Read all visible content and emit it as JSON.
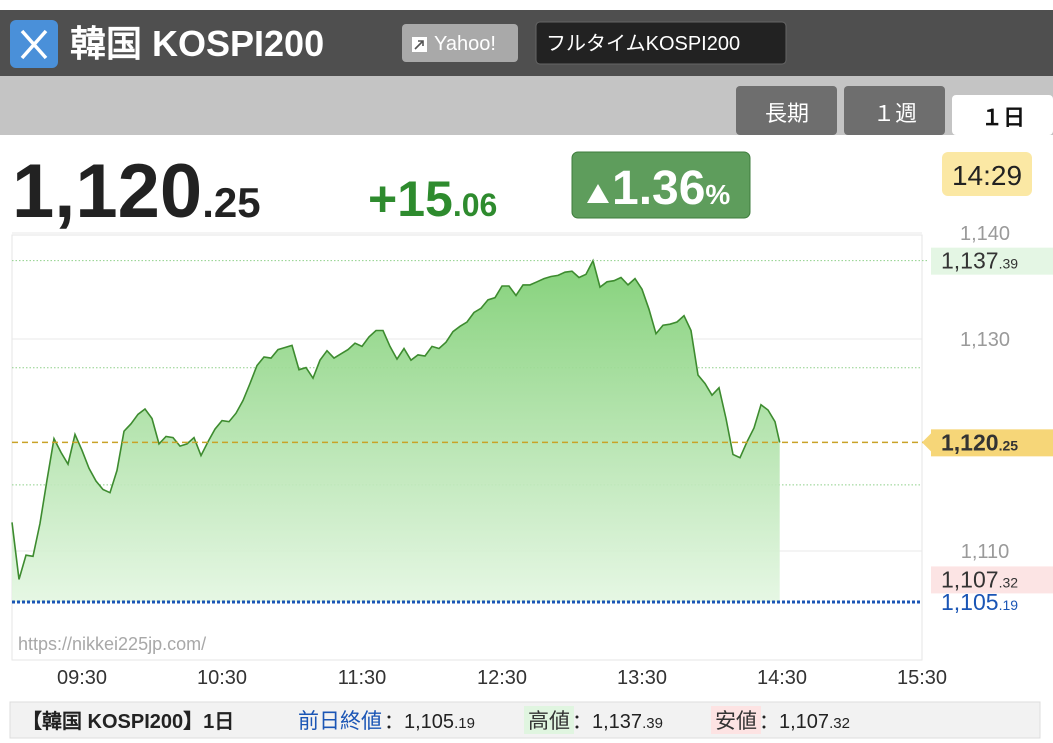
{
  "header": {
    "title": "韓国 KOSPI200",
    "buttons": [
      "Yahoo!",
      "フルタイムKOSPI200"
    ],
    "tabs": [
      "長期",
      "１週",
      "１日"
    ],
    "active_tab": 2
  },
  "quote": {
    "price": "1,120.25",
    "change": "+15.06",
    "change_pct": "1.36%",
    "time": "14:29"
  },
  "chart_data": {
    "type": "area",
    "color": "#3d8b2f",
    "x": [
      "09:00",
      "09:03",
      "09:06",
      "09:09",
      "09:12",
      "09:15",
      "09:18",
      "09:21",
      "09:24",
      "09:27",
      "09:30",
      "09:33",
      "09:36",
      "09:39",
      "09:42",
      "09:45",
      "09:48",
      "09:51",
      "09:54",
      "09:57",
      "10:00",
      "10:03",
      "10:06",
      "10:09",
      "10:12",
      "10:15",
      "10:18",
      "10:21",
      "10:24",
      "10:27",
      "10:30",
      "10:33",
      "10:36",
      "10:39",
      "10:42",
      "10:45",
      "10:48",
      "10:51",
      "10:54",
      "10:57",
      "11:00",
      "11:03",
      "11:06",
      "11:09",
      "11:12",
      "11:15",
      "11:18",
      "11:21",
      "11:24",
      "11:27",
      "11:30",
      "11:33",
      "11:36",
      "11:39",
      "11:42",
      "11:45",
      "11:48",
      "11:51",
      "11:54",
      "11:57",
      "12:00",
      "12:03",
      "12:06",
      "12:09",
      "12:12",
      "12:15",
      "12:18",
      "12:21",
      "12:24",
      "12:27",
      "12:30",
      "12:33",
      "12:36",
      "12:39",
      "12:42",
      "12:45",
      "12:48",
      "12:51",
      "12:54",
      "12:57",
      "13:00",
      "13:03",
      "13:06",
      "13:09",
      "13:12",
      "13:15",
      "13:18",
      "13:21",
      "13:24",
      "13:27",
      "13:30",
      "13:33",
      "13:36",
      "13:39",
      "13:42",
      "13:45",
      "13:48",
      "13:51",
      "13:54",
      "13:57",
      "14:00",
      "14:03",
      "14:06",
      "14:09",
      "14:12",
      "14:15",
      "14:18",
      "14:21",
      "14:24",
      "14:27",
      "14:29"
    ],
    "values": [
      1112.7,
      1107.32,
      1109.6,
      1109.5,
      1112.6,
      1116.7,
      1120.6,
      1119.3,
      1118.2,
      1121.0,
      1119.5,
      1117.8,
      1116.6,
      1115.8,
      1115.5,
      1117.6,
      1121.3,
      1122.0,
      1122.9,
      1123.4,
      1122.5,
      1120.1,
      1120.8,
      1120.7,
      1119.9,
      1120.1,
      1120.7,
      1119.0,
      1120.3,
      1121.5,
      1122.3,
      1122.2,
      1123.0,
      1124.2,
      1125.8,
      1127.5,
      1128.3,
      1128.2,
      1129.0,
      1129.2,
      1129.4,
      1127.1,
      1127.3,
      1126.3,
      1128.0,
      1128.9,
      1128.2,
      1128.6,
      1129.0,
      1129.6,
      1129.3,
      1130.2,
      1130.8,
      1130.8,
      1129.3,
      1128.1,
      1129.1,
      1128.0,
      1128.5,
      1128.4,
      1129.3,
      1129.1,
      1129.7,
      1130.7,
      1131.2,
      1131.6,
      1132.5,
      1132.9,
      1133.7,
      1133.9,
      1135.0,
      1135.0,
      1134.1,
      1135.1,
      1135.1,
      1135.4,
      1135.7,
      1135.9,
      1136.0,
      1136.3,
      1136.4,
      1135.8,
      1136.1,
      1137.39,
      1134.9,
      1135.4,
      1135.5,
      1135.8,
      1135.1,
      1135.7,
      1134.7,
      1132.8,
      1130.5,
      1131.3,
      1131.4,
      1131.6,
      1132.2,
      1130.8,
      1126.6,
      1125.8,
      1124.7,
      1125.4,
      1122.5,
      1119.1,
      1118.8,
      1120.3,
      1121.6,
      1123.8,
      1123.3,
      1122.2,
      1120.25
    ],
    "xlim": [
      "09:00",
      "15:30"
    ],
    "xticks": [
      "09:30",
      "10:30",
      "11:30",
      "12:30",
      "13:30",
      "14:30",
      "15:30"
    ],
    "ylim": [
      1100,
      1140
    ],
    "yticks": [
      {
        "value": 1140,
        "label": "1,140"
      },
      {
        "value": 1130,
        "label": "1,130"
      },
      {
        "value": 1110,
        "label": "1,110"
      }
    ],
    "grid": true,
    "reference_lines": [
      1116.24,
      1127.29
    ],
    "markers": [
      {
        "value": 1137.39,
        "label": "1,137.39",
        "color": "#e4f6e4",
        "line": "dotted"
      },
      {
        "value": 1120.25,
        "label": "1,120.25",
        "color": "#f6d678",
        "line": "dashed"
      },
      {
        "value": 1107.32,
        "label": "1,107.32",
        "color": "#fce4e4"
      },
      {
        "value": 1105.19,
        "label": "1,105.19",
        "color": "#1a55b5",
        "line": "dotted"
      }
    ],
    "watermark": "https://nikkei225jp.com/"
  },
  "footer": {
    "title": "【韓国 KOSPI200】1日",
    "items": [
      {
        "label": "前日終値",
        "value": "：1,105.19"
      },
      {
        "label": "高値",
        "value": "：1,137.39"
      },
      {
        "label": "安値",
        "value": "：1,107.32"
      }
    ]
  }
}
